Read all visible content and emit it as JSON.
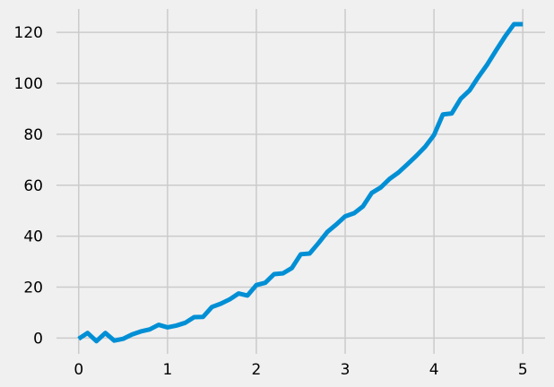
{
  "chart_data": {
    "type": "line",
    "title": "",
    "xlabel": "",
    "ylabel": "",
    "xlim": [
      -0.25,
      5.25
    ],
    "ylim": [
      -6.2,
      129.2
    ],
    "grid": true,
    "x_ticks": [
      0,
      1,
      2,
      3,
      4,
      5
    ],
    "y_ticks": [
      0,
      20,
      40,
      60,
      80,
      100,
      120
    ],
    "x_tick_labels": [
      "0",
      "1",
      "2",
      "3",
      "4",
      "5"
    ],
    "y_tick_labels": [
      "0",
      "20",
      "40",
      "60",
      "80",
      "100",
      "120"
    ],
    "series": [
      {
        "color": "#008fd5",
        "x": [
          0.0,
          0.1,
          0.2,
          0.3,
          0.4,
          0.5,
          0.6,
          0.7,
          0.8,
          0.9,
          1.0,
          1.1,
          1.2,
          1.3,
          1.4,
          1.5,
          1.6,
          1.7,
          1.8,
          1.9,
          2.0,
          2.1,
          2.2,
          2.3,
          2.4,
          2.5,
          2.6,
          2.7,
          2.8,
          2.9,
          3.0,
          3.1,
          3.2,
          3.3,
          3.4,
          3.5,
          3.6,
          3.7,
          3.8,
          3.9,
          4.0,
          4.1,
          4.2,
          4.3,
          4.4,
          4.5,
          4.6,
          4.7,
          4.8,
          4.9,
          5.0
        ],
        "y": [
          -0.3,
          2.0,
          -1.2,
          2.0,
          -1.0,
          -0.3,
          1.4,
          2.6,
          3.4,
          5.2,
          4.2,
          4.9,
          6.0,
          8.2,
          8.3,
          12.2,
          13.5,
          15.2,
          17.5,
          16.7,
          20.8,
          21.7,
          25.1,
          25.4,
          27.5,
          32.9,
          33.2,
          37.3,
          41.7,
          44.6,
          47.8,
          49.0,
          51.7,
          57.0,
          59.1,
          62.5,
          65.0,
          68.2,
          71.5,
          75.1,
          79.7,
          87.8,
          88.2,
          93.9,
          97.2,
          102.5,
          107.4,
          113.0,
          118.4,
          123.2,
          123.2
        ]
      }
    ]
  }
}
